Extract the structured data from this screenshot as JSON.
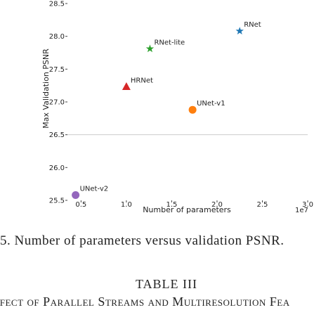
{
  "chart_data": {
    "type": "scatter",
    "xlabel": "Number of parameters",
    "ylabel": "Max Validation PSNR",
    "x_offset_label": "1e7",
    "xlim": [
      0.35,
      3.0
    ],
    "ylim": [
      25.5,
      28.5
    ],
    "x_ticks": [
      "0.5",
      "1.0",
      "1.5",
      "2.0",
      "2.5",
      "3.0"
    ],
    "y_ticks": [
      "25.5",
      "26.0",
      "26.5",
      "27.0",
      "27.5",
      "28.0",
      "28.5"
    ],
    "reference_line": 26.5,
    "points": [
      {
        "label": "RNet",
        "x": 2.25,
        "y": 28.08,
        "marker": "star",
        "color": "#1f77b4"
      },
      {
        "label": "RNet-lite",
        "x": 1.26,
        "y": 27.81,
        "marker": "star",
        "color": "#2ca02c"
      },
      {
        "label": "HRNet",
        "x": 1.0,
        "y": 27.23,
        "marker": "triangle",
        "color": "#d62728"
      },
      {
        "label": "UNet-v1",
        "x": 1.73,
        "y": 26.88,
        "marker": "circle",
        "color": "#ff7f0e"
      },
      {
        "label": "UNet-v2",
        "x": 0.44,
        "y": 25.58,
        "marker": "circle",
        "color": "#9467bd"
      }
    ]
  },
  "caption": "5.   Number of parameters versus validation PSNR.",
  "table_label": "TABLE III",
  "table_title": "ffect of Parallel Streams and Multiresolution Fea"
}
